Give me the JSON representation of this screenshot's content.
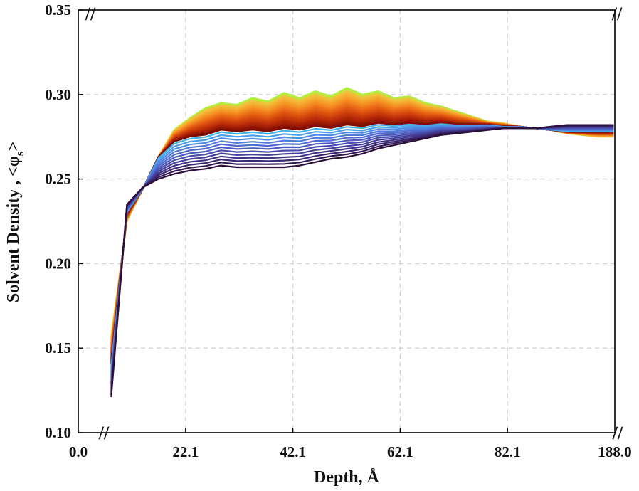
{
  "chart_data": {
    "type": "line",
    "title": "",
    "xlabel": "Depth, Å",
    "ylabel": {
      "prefix": "Solvent Density , <",
      "symbol": "φ",
      "subscript": "s",
      "suffix": ">"
    },
    "ylim": [
      0.1,
      0.35
    ],
    "grid": true,
    "legend": "none",
    "axis_break_mark": "//",
    "x_tick_labels": [
      "0.0",
      "22.1",
      "42.1",
      "62.1",
      "82.1",
      "188.0"
    ],
    "y_tick_labels": [
      "0.10",
      "0.15",
      "0.20",
      "0.25",
      "0.30",
      "0.35"
    ],
    "y_ticks": [
      0.1,
      0.15,
      0.2,
      0.25,
      0.3,
      0.35
    ],
    "x_scale_note": "x axis is broken; tick labels 0.0 and 188.0 sit at the two break marks",
    "x_positions": [
      6.3,
      9.3,
      12.3,
      15.3,
      18.3,
      21.3,
      24.3,
      27.3,
      30.3,
      33.3,
      36.3,
      39.3,
      42.3,
      45.3,
      48.3,
      51.3,
      54.3,
      57.3,
      60.3,
      63.3,
      66.3,
      69.3,
      72.3,
      75.3,
      78.3,
      81.3,
      84.3,
      87.3,
      90.3,
      93.3,
      96.3,
      99.3,
      102.3
    ],
    "x_range": [
      0,
      102.5
    ],
    "series_bottom": {
      "name": "earliest (dark purple)",
      "values": [
        0.121,
        0.235,
        0.245,
        0.25,
        0.253,
        0.255,
        0.256,
        0.258,
        0.257,
        0.257,
        0.257,
        0.257,
        0.258,
        0.26,
        0.262,
        0.263,
        0.265,
        0.268,
        0.27,
        0.272,
        0.274,
        0.276,
        0.277,
        0.278,
        0.279,
        0.28,
        0.28,
        0.28,
        0.281,
        0.282,
        0.282,
        0.282,
        0.282
      ]
    },
    "series_middle": {
      "name": "transition (light blue)",
      "values": [
        0.14,
        0.23,
        0.244,
        0.263,
        0.272,
        0.275,
        0.276,
        0.279,
        0.278,
        0.279,
        0.278,
        0.28,
        0.279,
        0.281,
        0.28,
        0.282,
        0.281,
        0.283,
        0.282,
        0.283,
        0.282,
        0.283,
        0.282,
        0.282,
        0.282,
        0.281,
        0.281,
        0.28,
        0.279,
        0.278,
        0.278,
        0.278,
        0.278
      ]
    },
    "series_top": {
      "name": "latest (yellow-green)",
      "values": [
        0.157,
        0.225,
        0.244,
        0.263,
        0.279,
        0.286,
        0.292,
        0.295,
        0.294,
        0.298,
        0.296,
        0.301,
        0.298,
        0.302,
        0.299,
        0.304,
        0.3,
        0.302,
        0.298,
        0.299,
        0.295,
        0.293,
        0.29,
        0.287,
        0.284,
        0.283,
        0.281,
        0.28,
        0.279,
        0.277,
        0.276,
        0.275,
        0.275
      ]
    },
    "series_count": 40,
    "colormap": [
      "#2b0f3a",
      "#3e2f7f",
      "#4a4fb0",
      "#4f76d8",
      "#4aa3ee",
      "#2ed8d0",
      "#6ef08a",
      "#b4ee3a",
      "#f3c03a",
      "#f58a20",
      "#e05410",
      "#b82a08",
      "#7a0a03"
    ]
  }
}
